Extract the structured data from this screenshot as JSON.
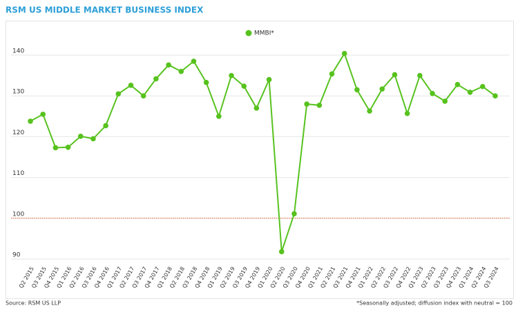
{
  "chart_data": {
    "type": "line",
    "title": "RSM US MIDDLE MARKET BUSINESS INDEX",
    "source": "Source: RSM US LLP",
    "note": "*Seasonally adjusted; diffusion index with neutral = 100",
    "categories": [
      "Q2 2015",
      "Q3 2015",
      "Q4 2015",
      "Q1 2016",
      "Q2 2016",
      "Q3 2016",
      "Q4 2016",
      "Q1 2017",
      "Q2 2017",
      "Q3 2017",
      "Q4 2017",
      "Q1 2018",
      "Q2 2018",
      "Q3 2018",
      "Q4 2018",
      "Q1 2019",
      "Q2 2019",
      "Q3 2019",
      "Q4 2019",
      "Q1 2020",
      "Q2 2020",
      "Q3 2020",
      "Q4 2020",
      "Q1 2021",
      "Q2 2021",
      "Q3 2021",
      "Q4 2021",
      "Q1 2022",
      "Q2 2022",
      "Q3 2022",
      "Q4 2022",
      "Q1 2023",
      "Q2 2023",
      "Q3 2023",
      "Q4 2023",
      "Q1 2024",
      "Q2 2024",
      "Q3 2024"
    ],
    "series": [
      {
        "name": "MMBI*",
        "color": "#57c21e",
        "values": [
          123.8,
          125.5,
          117.3,
          117.4,
          120.1,
          119.5,
          122.7,
          130.5,
          132.6,
          130.0,
          134.2,
          137.6,
          136.0,
          138.5,
          133.3,
          125.0,
          135.0,
          132.4,
          127.0,
          134.0,
          91.8,
          101.1,
          128.0,
          127.7,
          135.4,
          140.4,
          131.5,
          126.3,
          131.7,
          135.2,
          125.7,
          135.0,
          130.6,
          128.7,
          132.8,
          130.9,
          132.3,
          130.0
        ]
      }
    ],
    "reference_line": {
      "value": 100,
      "color": "#e0531f"
    },
    "ylim": [
      88,
      143
    ],
    "yticks": [
      90,
      100,
      110,
      120,
      130,
      140
    ],
    "grid": true,
    "legend": "top"
  }
}
